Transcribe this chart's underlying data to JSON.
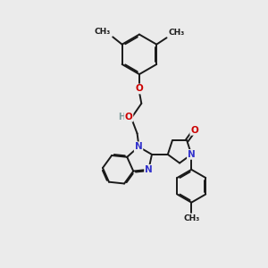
{
  "bg_color": "#ebebeb",
  "bond_color": "#1a1a1a",
  "N_color": "#3333cc",
  "O_color": "#cc0000",
  "H_color": "#7a9a9a",
  "bond_width": 1.4,
  "dbo": 0.06,
  "figsize": [
    3.0,
    3.0
  ],
  "dpi": 100,
  "xlim": [
    0,
    10
  ],
  "ylim": [
    0,
    10
  ]
}
